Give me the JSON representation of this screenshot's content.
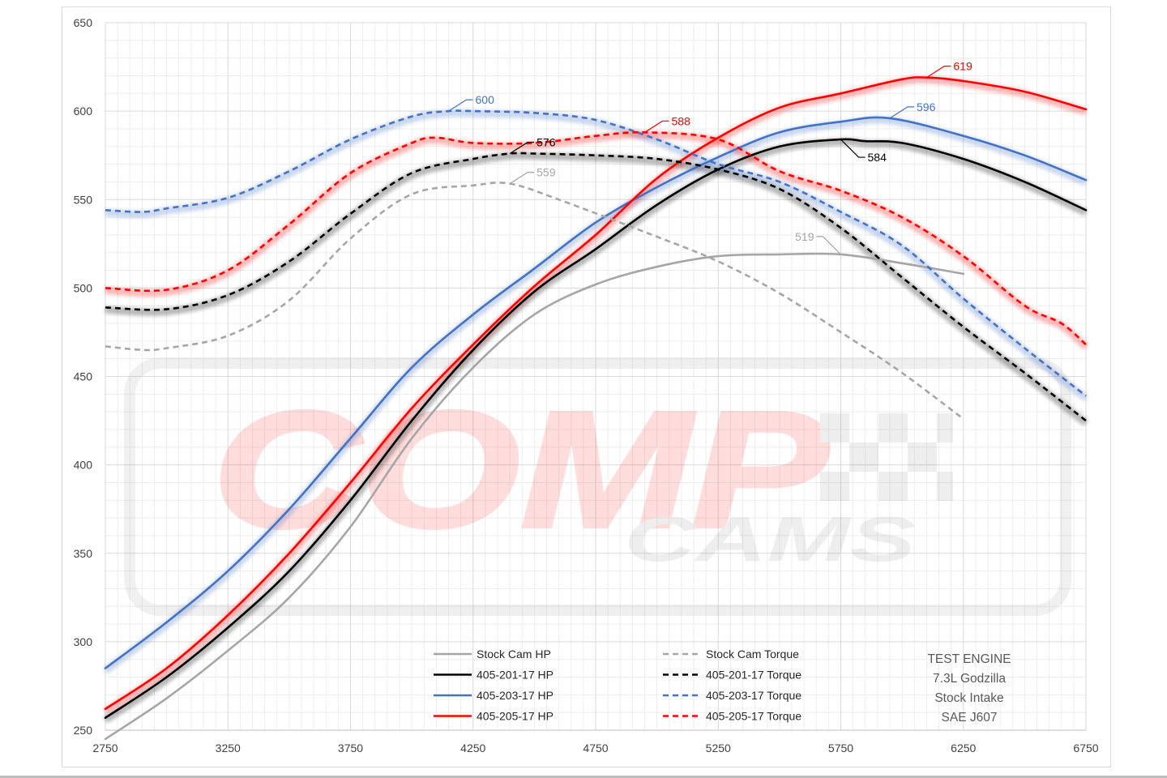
{
  "chart_data": {
    "type": "line",
    "x_ticks": [
      "2750",
      "3250",
      "3750",
      "4250",
      "4750",
      "5250",
      "5750",
      "6250",
      "6750"
    ],
    "y_ticks": [
      "250",
      "300",
      "350",
      "400",
      "450",
      "500",
      "550",
      "600",
      "650"
    ],
    "xlim": [
      2750,
      6750
    ],
    "ylim": [
      250,
      650
    ],
    "grid": true,
    "legend_placement": "bottom",
    "watermark": "COMP CAMS",
    "colors": {
      "stock": "#a6a6a6",
      "black": "#000000",
      "blue": "#4472c4",
      "red": "#ff0000"
    },
    "series": [
      {
        "name": "Stock Cam HP",
        "color": "#a6a6a6",
        "dashed": false,
        "glow": false,
        "x": [
          2750,
          3000,
          3250,
          3500,
          3750,
          4000,
          4250,
          4500,
          4750,
          5000,
          5250,
          5500,
          5750,
          6000,
          6250
        ],
        "y": [
          245,
          268,
          295,
          325,
          365,
          415,
          455,
          485,
          502,
          512,
          518,
          519,
          519,
          514,
          508
        ]
      },
      {
        "name": "405-201-17 HP",
        "color": "#000000",
        "dashed": false,
        "glow": true,
        "x": [
          2750,
          3000,
          3250,
          3500,
          3750,
          4000,
          4250,
          4500,
          4750,
          5000,
          5250,
          5500,
          5750,
          5850,
          6000,
          6250,
          6500,
          6750
        ],
        "y": [
          257,
          280,
          308,
          340,
          380,
          425,
          465,
          498,
          522,
          547,
          567,
          580,
          584,
          583,
          582,
          573,
          560,
          544
        ]
      },
      {
        "name": "405-203-17 HP",
        "color": "#4472c4",
        "dashed": false,
        "glow": true,
        "x": [
          2750,
          3000,
          3250,
          3500,
          3750,
          4000,
          4250,
          4500,
          4750,
          5000,
          5250,
          5500,
          5750,
          5950,
          6250,
          6500,
          6750
        ],
        "y": [
          285,
          311,
          340,
          375,
          415,
          455,
          485,
          511,
          537,
          557,
          574,
          588,
          594,
          596,
          586,
          575,
          561
        ]
      },
      {
        "name": "405-205-17 HP",
        "color": "#ff0000",
        "dashed": false,
        "glow": true,
        "x": [
          2750,
          3000,
          3250,
          3500,
          3750,
          4000,
          4250,
          4500,
          4750,
          5000,
          5250,
          5500,
          5750,
          6000,
          6100,
          6250,
          6500,
          6750
        ],
        "y": [
          262,
          285,
          315,
          350,
          390,
          432,
          468,
          501,
          530,
          562,
          585,
          602,
          610,
          618,
          619,
          617,
          611,
          601
        ]
      },
      {
        "name": "Stock Cam Torque",
        "color": "#a6a6a6",
        "dashed": true,
        "glow": false,
        "x": [
          2750,
          2900,
          3000,
          3250,
          3500,
          3750,
          4000,
          4250,
          4400,
          4600,
          5000,
          5250,
          5500,
          5750,
          6000,
          6250
        ],
        "y": [
          467,
          465,
          466,
          473,
          493,
          528,
          553,
          558,
          559,
          550,
          529,
          515,
          497,
          475,
          452,
          426
        ]
      },
      {
        "name": "405-201-17 Torque",
        "color": "#000000",
        "dashed": true,
        "glow": true,
        "x": [
          2750,
          3000,
          3250,
          3500,
          3750,
          4000,
          4250,
          4400,
          4500,
          4750,
          5000,
          5250,
          5500,
          5750,
          6000,
          6250,
          6500,
          6750
        ],
        "y": [
          489,
          488,
          496,
          515,
          542,
          565,
          573,
          576,
          576,
          575,
          573,
          567,
          556,
          534,
          506,
          478,
          452,
          425
        ]
      },
      {
        "name": "405-203-17 Torque",
        "color": "#4472c4",
        "dashed": true,
        "glow": true,
        "x": [
          2750,
          2900,
          3000,
          3250,
          3500,
          3750,
          4000,
          4150,
          4250,
          4500,
          4750,
          5000,
          5250,
          5500,
          5750,
          6000,
          6250,
          6500,
          6750
        ],
        "y": [
          544,
          543,
          545,
          551,
          566,
          584,
          597,
          600,
          600,
          599,
          595,
          584,
          570,
          560,
          543,
          524,
          494,
          466,
          439
        ]
      },
      {
        "name": "405-205-17 Torque",
        "color": "#ff0000",
        "dashed": true,
        "glow": true,
        "x": [
          2750,
          3000,
          3250,
          3500,
          3750,
          4000,
          4100,
          4250,
          4500,
          4750,
          4950,
          5250,
          5500,
          5750,
          6000,
          6250,
          6500,
          6650,
          6750
        ],
        "y": [
          500,
          499,
          510,
          536,
          565,
          582,
          585,
          582,
          582,
          586,
          588,
          584,
          566,
          555,
          540,
          518,
          490,
          480,
          468
        ]
      }
    ],
    "peak_labels": [
      {
        "text": "600",
        "color": "#4472c4",
        "x": 4150,
        "y": 600
      },
      {
        "text": "588",
        "color": "#ff0000",
        "x": 4950,
        "y": 588
      },
      {
        "text": "576",
        "color": "#000000",
        "x": 4400,
        "y": 576
      },
      {
        "text": "559",
        "color": "#a6a6a6",
        "x": 4400,
        "y": 559
      },
      {
        "text": "619",
        "color": "#ff0000",
        "x": 6100,
        "y": 619
      },
      {
        "text": "596",
        "color": "#4472c4",
        "x": 5950,
        "y": 596
      },
      {
        "text": "584",
        "color": "#000000",
        "x": 5750,
        "y": 584
      },
      {
        "text": "519",
        "color": "#a6a6a6",
        "x": 5750,
        "y": 519
      }
    ],
    "test_engine": [
      "TEST ENGINE",
      "7.3L Godzilla",
      "Stock Intake",
      "SAE J607"
    ]
  }
}
